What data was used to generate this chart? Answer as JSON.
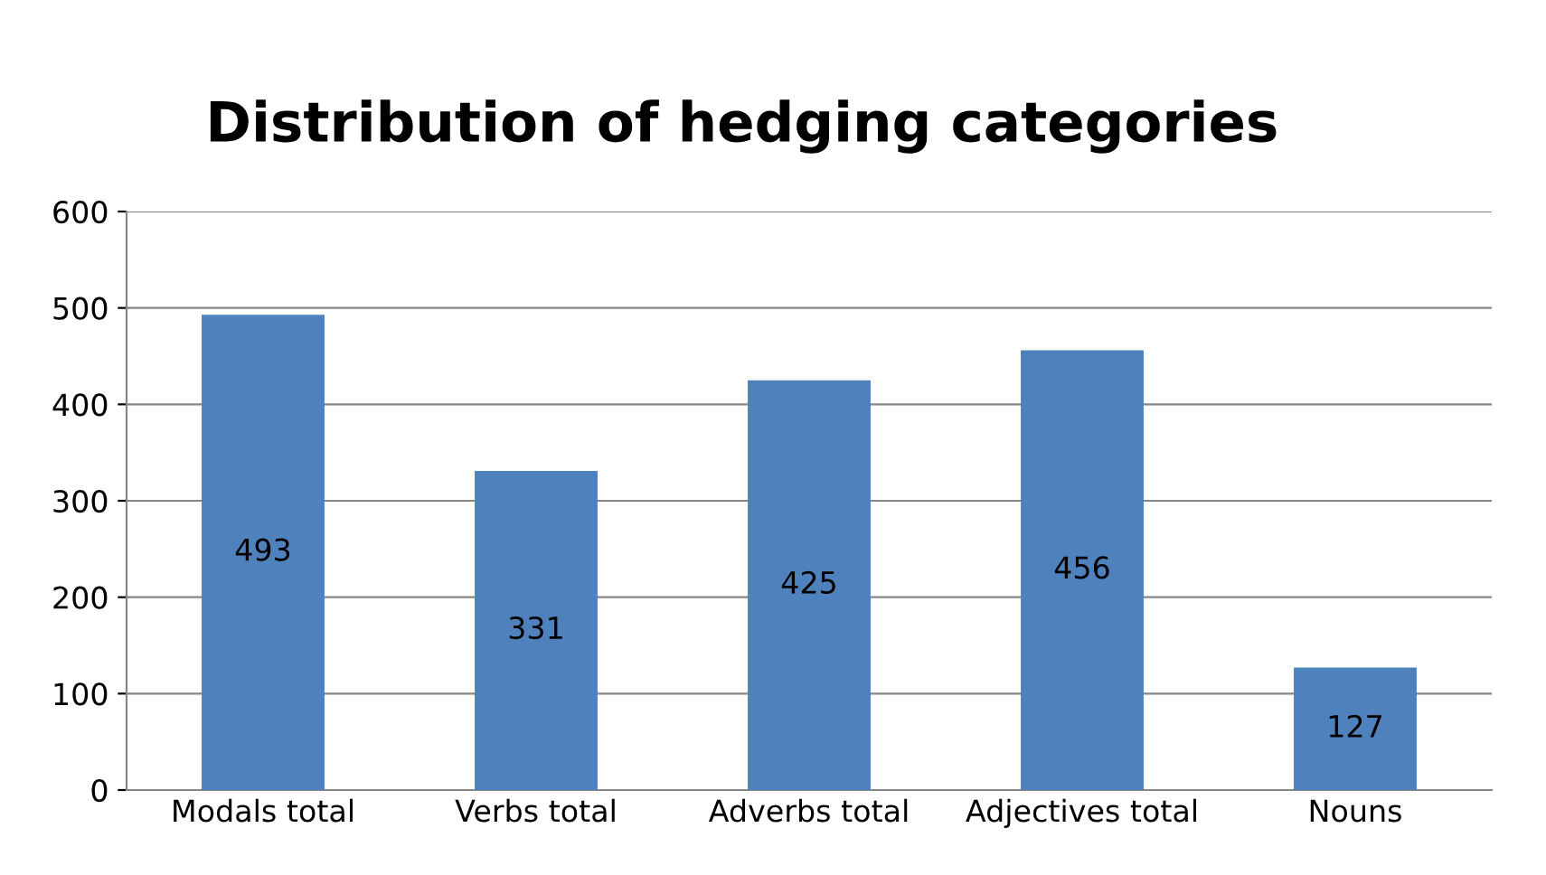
{
  "chart_data": {
    "type": "bar",
    "title": "Distribution of hedging categories",
    "categories": [
      "Modals total",
      "Verbs total",
      "Adverbs total",
      "Adjectives total",
      "Nouns"
    ],
    "values": [
      493,
      331,
      425,
      456,
      127
    ],
    "color": "#4f81bd",
    "ylim": [
      0,
      600
    ],
    "yticks": [
      0,
      100,
      200,
      300,
      400,
      500,
      600
    ],
    "grid": "y",
    "data_labels": true
  }
}
